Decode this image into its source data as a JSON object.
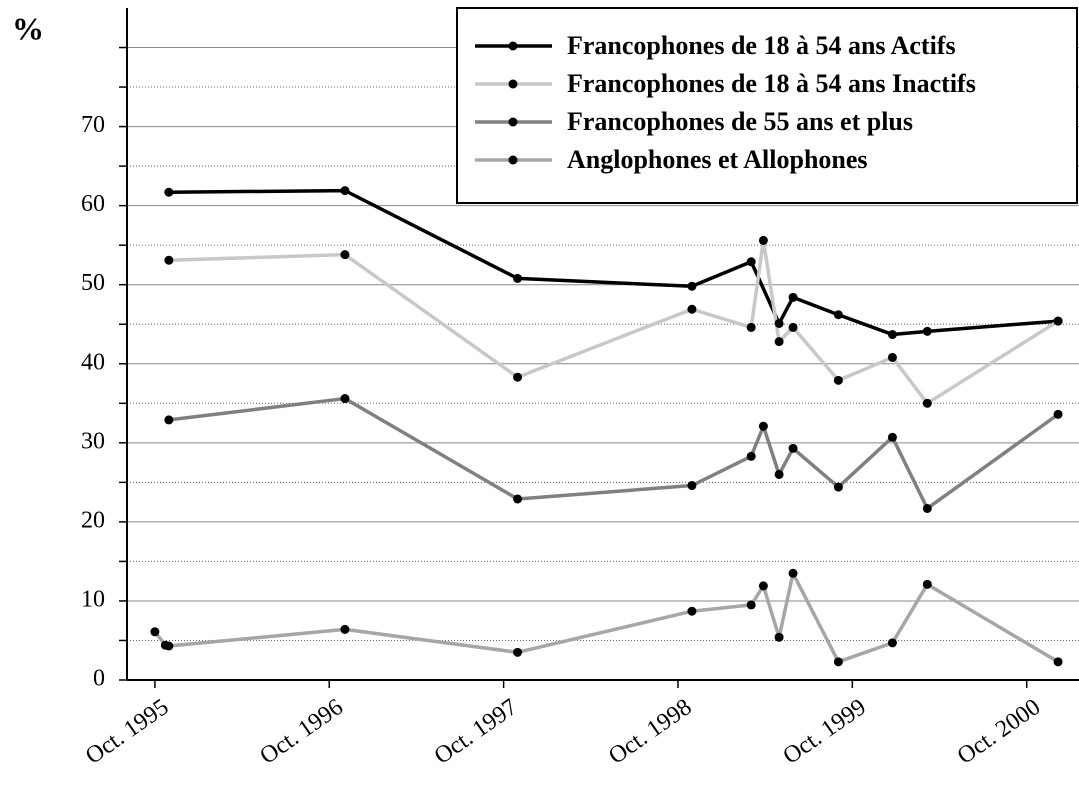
{
  "chart_data": {
    "type": "line",
    "y_label": "%",
    "xlim": [
      1995.59,
      2001.05
    ],
    "xticks": [
      {
        "value": 1995.75,
        "label": "Oct. 1995"
      },
      {
        "value": 1996.75,
        "label": "Oct. 1996"
      },
      {
        "value": 1997.75,
        "label": "Oct. 1997"
      },
      {
        "value": 1998.75,
        "label": "Oct. 1998"
      },
      {
        "value": 1999.75,
        "label": "Oct. 1999"
      },
      {
        "value": 2000.75,
        "label": "Oct. 2000"
      }
    ],
    "ylim": [
      0,
      85
    ],
    "yticks": [
      0,
      10,
      20,
      30,
      40,
      50,
      60,
      70
    ],
    "grid_lines": [
      0,
      5,
      10,
      15,
      20,
      25,
      30,
      35,
      40,
      45,
      50,
      55,
      60,
      65,
      70,
      75,
      80
    ],
    "legend": "upper right",
    "series": [
      {
        "name": "Francophones de 18 à 54 ans Actifs",
        "color": "#000000",
        "x": [
          1995.83,
          1996.84,
          1997.83,
          1998.83,
          1999.17,
          1999.33,
          1999.41,
          1999.67,
          1999.98,
          2000.18,
          2000.93
        ],
        "values": [
          61.7,
          61.9,
          50.8,
          49.8,
          52.9,
          45.1,
          48.4,
          46.2,
          43.7,
          44.1,
          45.4
        ]
      },
      {
        "name": "Francophones de 18 à 54 ans Inactifs",
        "color": "#c8c8c8",
        "x": [
          1995.83,
          1996.84,
          1997.83,
          1998.83,
          1999.17,
          1999.24,
          1999.33,
          1999.41,
          1999.67,
          1999.98,
          2000.18,
          2000.93
        ],
        "values": [
          53.1,
          53.8,
          38.3,
          46.9,
          44.6,
          55.6,
          42.8,
          44.6,
          37.9,
          40.8,
          35.0,
          45.4
        ]
      },
      {
        "name": "Francophones de 55 ans et plus",
        "color": "#808080",
        "x": [
          1995.83,
          1996.84,
          1997.83,
          1998.83,
          1999.17,
          1999.24,
          1999.33,
          1999.41,
          1999.67,
          1999.98,
          2000.18,
          2000.93
        ],
        "values": [
          32.9,
          35.6,
          22.9,
          24.6,
          28.3,
          32.1,
          26.0,
          29.3,
          24.4,
          30.7,
          21.7,
          33.6
        ]
      },
      {
        "name": "Anglophones et Allophones",
        "color": "#a6a6a6",
        "x": [
          1995.75,
          1995.81,
          1995.83,
          1996.84,
          1997.83,
          1998.83,
          1999.17,
          1999.24,
          1999.33,
          1999.41,
          1999.67,
          1999.98,
          2000.18,
          2000.93
        ],
        "values": [
          6.1,
          4.4,
          4.3,
          6.4,
          3.5,
          8.7,
          9.5,
          11.9,
          5.4,
          13.5,
          2.3,
          4.7,
          12.1,
          2.3
        ]
      }
    ]
  }
}
